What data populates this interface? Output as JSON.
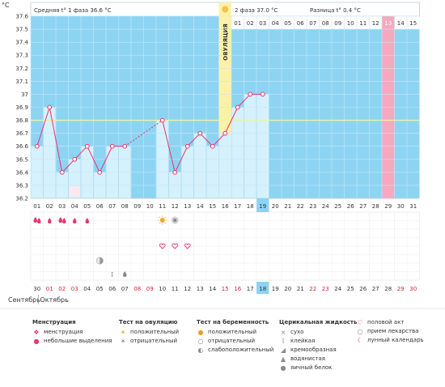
{
  "phase1": {
    "label": "Средняя t° 1 фаза 36.6 °C"
  },
  "phase2": {
    "label": "2 фаза 37.0 °C",
    "delta": "Разница t° 0.4 °C"
  },
  "ovulation_label": "ОВУЛЯЦИЯ",
  "unit_label": "°C",
  "chart_data": {
    "type": "line",
    "ylim": [
      36.2,
      37.6
    ],
    "yticks": [
      "36.2",
      "36.3",
      "36.4",
      "36.5",
      "36.6",
      "36.7",
      "36.8",
      "36.9",
      "37",
      "37.1",
      "37.2",
      "37.3",
      "37.4",
      "37.5",
      "37.6"
    ],
    "cover_line": 36.8,
    "days": 31,
    "x": [
      "01",
      "02",
      "03",
      "04",
      "05",
      "06",
      "07",
      "08",
      "09",
      "10",
      "11",
      "12",
      "13",
      "14",
      "15",
      "16",
      "17",
      "18",
      "19",
      "20",
      "21",
      "22",
      "23",
      "24",
      "25",
      "26",
      "27",
      "28",
      "29",
      "30",
      "31"
    ],
    "cycle_days": [
      "01",
      "02",
      "03",
      "04",
      "05",
      "06",
      "07",
      "08",
      "09",
      "10",
      "11",
      "12",
      "13",
      "14",
      "15"
    ],
    "ovulation_day": 16,
    "current_day": 19,
    "expected_period_day": 29,
    "temperatures": [
      36.6,
      36.9,
      36.4,
      36.5,
      36.6,
      36.4,
      36.6,
      36.6,
      null,
      null,
      36.8,
      36.4,
      36.6,
      36.7,
      36.6,
      36.7,
      36.9,
      37.0,
      37.0,
      null,
      null,
      null,
      null,
      null,
      null,
      null,
      null,
      null,
      null,
      null,
      null
    ],
    "dashed_gap": [
      8,
      11
    ],
    "dates": [
      "30",
      "01",
      "02",
      "03",
      "04",
      "05",
      "06",
      "07",
      "08",
      "09",
      "10",
      "11",
      "12",
      "13",
      "14",
      "15",
      "16",
      "17",
      "18",
      "19",
      "20",
      "21",
      "22",
      "23",
      "24",
      "25",
      "26",
      "27",
      "28",
      "29",
      "30"
    ],
    "red_dates": [
      1,
      2,
      3,
      8,
      9,
      15,
      16,
      22,
      23,
      29,
      30
    ],
    "today_date_index": 18,
    "months": [
      "Сентябрь",
      "Октябрь"
    ],
    "markers": {
      "menstruation": [
        1,
        3
      ],
      "light_discharge": [
        2,
        4,
        5
      ],
      "lunar_calendar": [
        4
      ],
      "ovulation_positive": [
        11
      ],
      "ovulation_negative": [
        12
      ],
      "intercourse": [
        11,
        12,
        13
      ],
      "pregnancy_weak": [
        6
      ],
      "fluid_sticky": [
        7
      ],
      "fluid_eggwhite": [
        8
      ]
    }
  },
  "legend": {
    "menstruation": {
      "title": "Менструация",
      "items": [
        "менструация",
        "небольшие выделения"
      ]
    },
    "ovulation_test": {
      "title": "Тест на овуляцию",
      "items": [
        "положительный",
        "отрицательный"
      ]
    },
    "pregnancy_test": {
      "title": "Тест на беременность",
      "items": [
        "положительный",
        "отрицательный",
        "слабоположительный"
      ]
    },
    "cervical_fluid": {
      "title": "Церикальная жидкость",
      "items": [
        "сухо",
        "клейкая",
        "кремообразная",
        "водянистая",
        "яичный белок"
      ]
    },
    "other": {
      "items": [
        "половой акт",
        "прием лекарства",
        "лунный календарь"
      ]
    }
  }
}
